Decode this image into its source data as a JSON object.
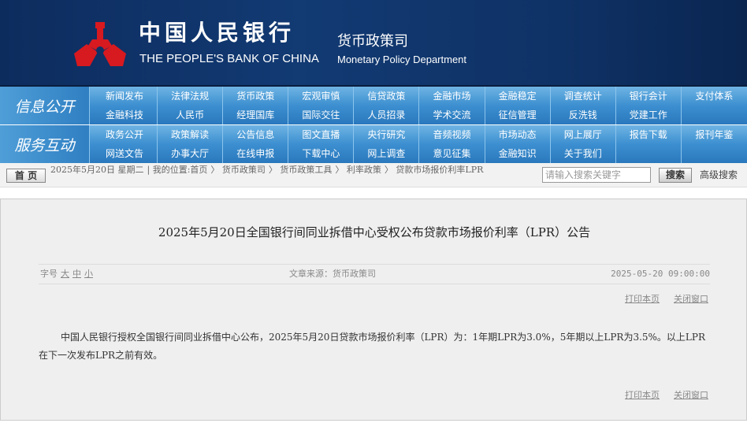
{
  "header": {
    "bank_cn": "中国人民银行",
    "bank_en": "THE PEOPLE'S BANK OF CHINA",
    "dept_cn": "货币政策司",
    "dept_en": "Monetary Policy Department",
    "logo_color": "#d71920"
  },
  "nav": {
    "info": {
      "label": "信息公开",
      "items": [
        "新闻发布",
        "法律法规",
        "货币政策",
        "宏观审慎",
        "信贷政策",
        "金融市场",
        "金融稳定",
        "调查统计",
        "银行会计",
        "支付体系",
        "金融科技",
        "人民币",
        "经理国库",
        "国际交往",
        "人员招录",
        "学术交流",
        "征信管理",
        "反洗钱",
        "党建工作",
        ""
      ]
    },
    "service": {
      "label": "服务互动",
      "items": [
        "政务公开",
        "政策解读",
        "公告信息",
        "图文直播",
        "央行研究",
        "音频视频",
        "市场动态",
        "网上展厅",
        "报告下载",
        "报刊年鉴",
        "网送文告",
        "办事大厅",
        "在线申报",
        "下载中心",
        "网上调查",
        "意见征集",
        "金融知识",
        "关于我们",
        "",
        ""
      ]
    }
  },
  "crumbbar": {
    "home": "首 页",
    "date": "2025年5月20日 星期二",
    "location": "我的位置:首页",
    "path": [
      "货币政策司",
      "货币政策工具",
      "利率政策",
      "贷款市场报价利率LPR"
    ],
    "search_placeholder": "请输入搜索关键字",
    "search": "搜索",
    "advanced": "高级搜索"
  },
  "article": {
    "title": "2025年5月20日全国银行间同业拆借中心受权公布贷款市场报价利率（LPR）公告",
    "font_size_label": "字号",
    "sizes": [
      "大",
      "中",
      "小"
    ],
    "source": "文章来源：货币政策司",
    "datetime": "2025-05-20 09:00:00",
    "print": "打印本页",
    "close": "关闭窗口",
    "body": "中国人民银行授权全国银行间同业拆借中心公布，2025年5月20日贷款市场报价利率（LPR）为：1年期LPR为3.0%，5年期以上LPR为3.5%。以上LPR在下一次发布LPR之前有效。"
  }
}
